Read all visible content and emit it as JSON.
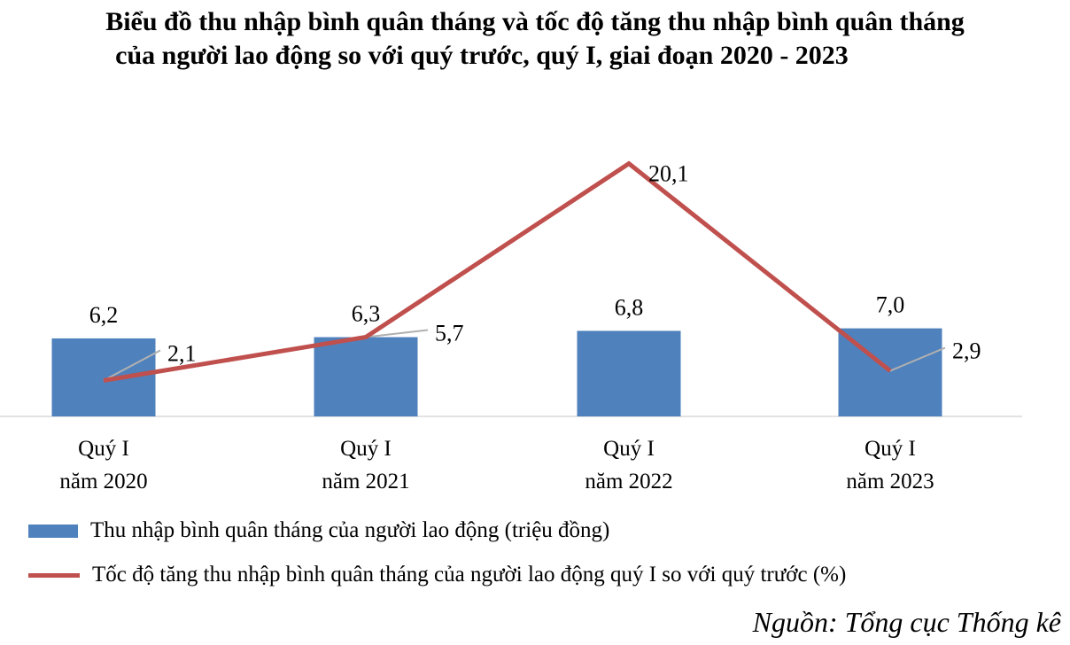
{
  "title_line1": "Biểu đồ thu nhập bình quân tháng và tốc độ tăng thu nhập bình quân tháng",
  "title_line2": "của người lao động so với quý trước, quý I, giai đoạn 2020 - 2023",
  "source": "Nguồn: Tổng cục Thống kê",
  "chart_data": {
    "type": "bar",
    "categories": [
      [
        "Quý I",
        "năm 2020"
      ],
      [
        "Quý I",
        "năm 2021"
      ],
      [
        "Quý I",
        "năm 2022"
      ],
      [
        "Quý I",
        "năm 2023"
      ]
    ],
    "series": [
      {
        "name": "Thu nhập bình quân tháng của người lao động (triệu đồng)",
        "type": "bar",
        "values": [
          6.2,
          6.3,
          6.8,
          7.0
        ],
        "labels": [
          "6,2",
          "6,3",
          "6,8",
          "7,0"
        ],
        "color": "#4f81bd"
      },
      {
        "name": "Tốc độ tăng thu nhập bình quân tháng của người lao động quý I so với quý trước (%)",
        "type": "line",
        "values": [
          2.1,
          5.7,
          20.1,
          2.9
        ],
        "labels": [
          "2,1",
          "5,7",
          "20,1",
          "2,9"
        ],
        "color": "#c0504d"
      }
    ],
    "legend_position": "bottom-left",
    "grid": false
  }
}
